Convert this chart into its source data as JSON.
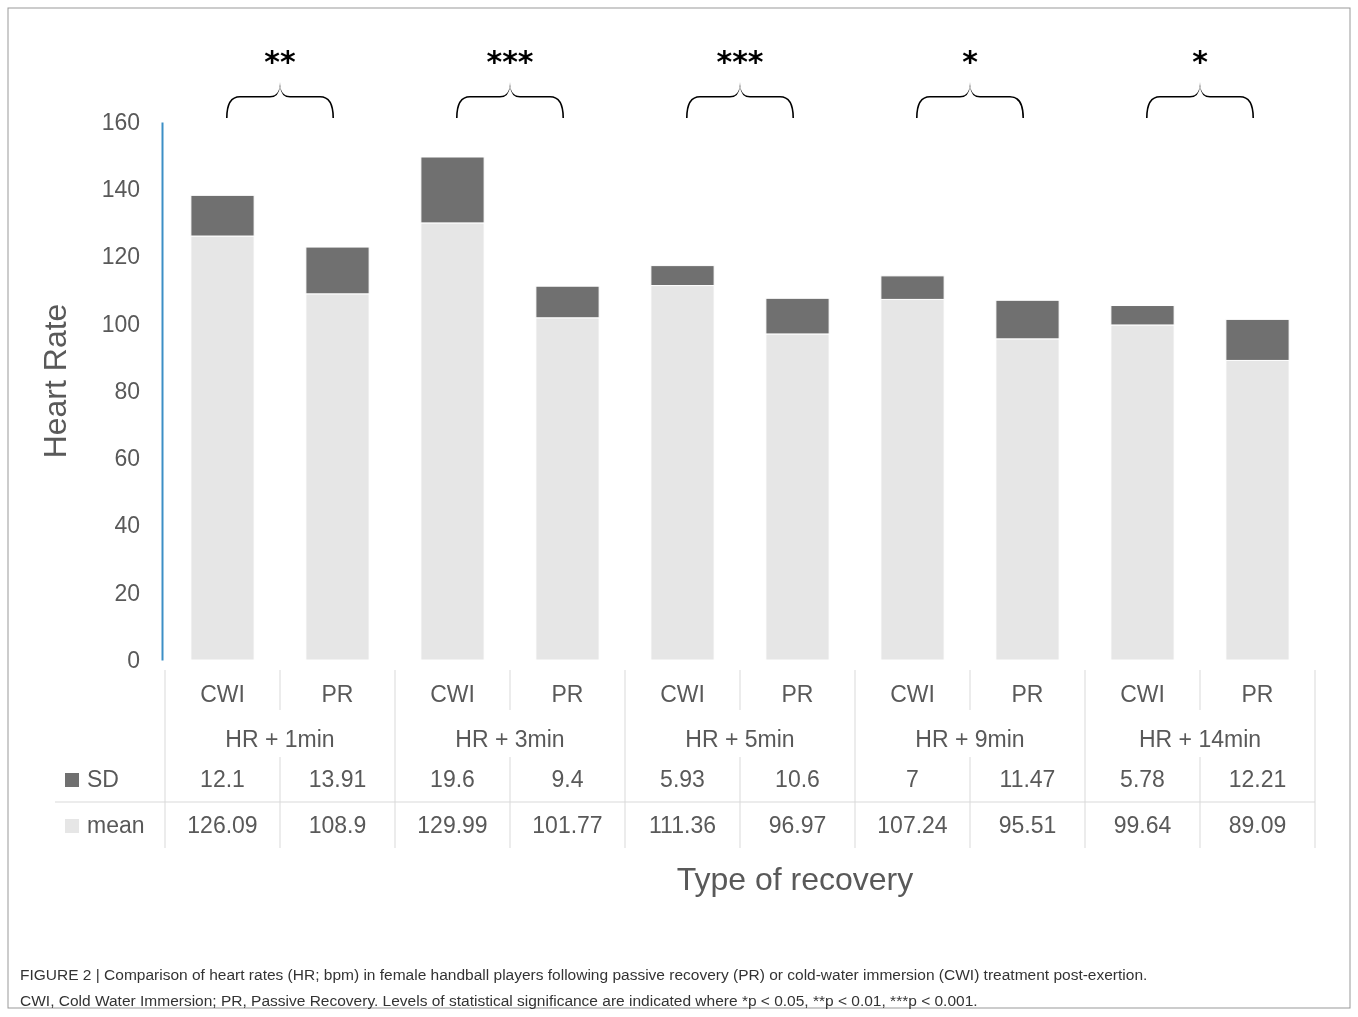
{
  "chart_data": {
    "type": "bar",
    "stacked": true,
    "categories": [
      "CWI",
      "PR",
      "CWI",
      "PR",
      "CWI",
      "PR",
      "CWI",
      "PR",
      "CWI",
      "PR"
    ],
    "series": [
      {
        "name": "mean",
        "color": "#e6e6e6",
        "values": [
          126.09,
          108.9,
          129.99,
          101.77,
          111.36,
          96.97,
          107.24,
          95.51,
          99.64,
          89.09
        ]
      },
      {
        "name": "SD",
        "color": "#707070",
        "values": [
          12.1,
          13.91,
          19.6,
          9.4,
          5.93,
          10.6,
          7,
          11.47,
          5.78,
          12.21
        ]
      }
    ],
    "ylim": [
      0,
      160
    ],
    "yticks": [
      0,
      20,
      40,
      60,
      80,
      100,
      120,
      140,
      160
    ],
    "ylabel": "Heart Rate",
    "xlabel": "Type of recovery",
    "data_labels": true,
    "legend": "bottom",
    "grid": false,
    "annotations": [
      "**",
      "***",
      "***",
      "*",
      "*",
      "HR + 1min",
      "HR + 3min",
      "HR + 5min",
      "HR + 9min",
      "HR + 14min",
      "FIGURE 2 | Comparison of heart rates (HR; bpm) in female handball players following passive recovery (PR) or cold-water immersion (CWI) treatment post-exertion.",
      "CWI, Cold Water Immersion; PR, Passive Recovery. Levels of statistical significance are indicated where *p < 0.05, **p < 0.01, ***p < 0.001."
    ]
  }
}
